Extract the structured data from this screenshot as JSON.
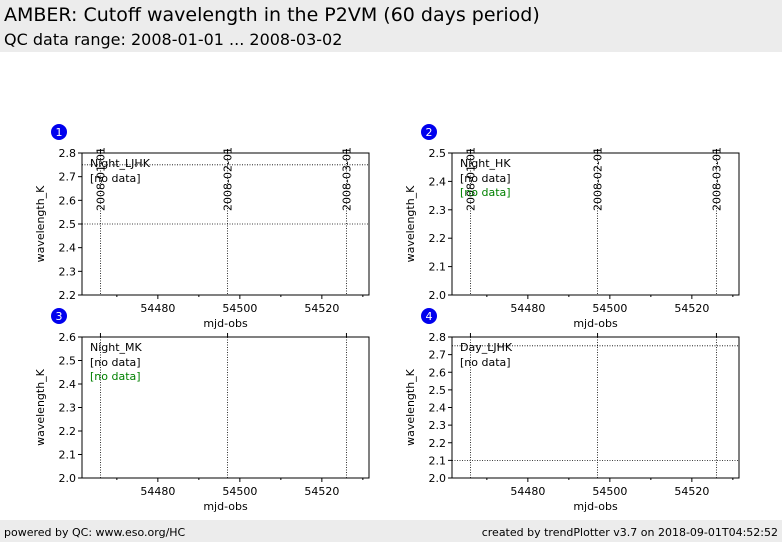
{
  "header": {
    "title": "AMBER: Cutoff wavelength in the P2VM (60 days period)",
    "subtitle": "QC data range: 2008-01-01 ... 2008-03-02"
  },
  "footer": {
    "left": "powered by QC: www.eso.org/HC",
    "right": "created by trendPlotter v3.7 on 2018-09-01T04:52:52"
  },
  "chart_data": [
    {
      "type": "scatter",
      "badge": "1",
      "legend": "Night_LJHK",
      "notes": [
        {
          "text": "[no data]",
          "color": "#000000"
        }
      ],
      "xlabel": "mjd-obs",
      "ylabel": "wavelength_K",
      "xlim": [
        54461.5,
        54531.5
      ],
      "ylim": [
        2.2,
        2.8
      ],
      "xticks": [
        54480,
        54500,
        54520
      ],
      "xminor": [
        54470,
        54490,
        54510,
        54530
      ],
      "yticks": [
        2.2,
        2.3,
        2.4,
        2.5,
        2.6,
        2.7,
        2.8
      ],
      "ref_lines_y": [
        2.75,
        2.5
      ],
      "date_marks": [
        {
          "x": 54466,
          "label": "2008-01-01"
        },
        {
          "x": 54497,
          "label": "2008-02-01"
        },
        {
          "x": 54526,
          "label": "2008-03-01"
        }
      ],
      "points": []
    },
    {
      "type": "scatter",
      "badge": "2",
      "legend": "Night_HK",
      "notes": [
        {
          "text": "[no data]",
          "color": "#000000"
        },
        {
          "text": "[no data]",
          "color": "#008000"
        }
      ],
      "xlabel": "mjd-obs",
      "ylabel": "wavelength_K",
      "xlim": [
        54461.5,
        54531.5
      ],
      "ylim": [
        2.0,
        2.5
      ],
      "xticks": [
        54480,
        54500,
        54520
      ],
      "xminor": [
        54470,
        54490,
        54510,
        54530
      ],
      "yticks": [
        2.0,
        2.1,
        2.2,
        2.3,
        2.4,
        2.5
      ],
      "ref_lines_y": [],
      "date_marks": [
        {
          "x": 54466,
          "label": "2008-01-01"
        },
        {
          "x": 54497,
          "label": "2008-02-01"
        },
        {
          "x": 54526,
          "label": "2008-03-01"
        }
      ],
      "points": []
    },
    {
      "type": "scatter",
      "badge": "3",
      "legend": "Night_MK",
      "notes": [
        {
          "text": "[no data]",
          "color": "#000000"
        },
        {
          "text": "[no data]",
          "color": "#008000"
        }
      ],
      "xlabel": "mjd-obs",
      "ylabel": "wavelength_K",
      "xlim": [
        54461.5,
        54531.5
      ],
      "ylim": [
        2.0,
        2.6
      ],
      "xticks": [
        54480,
        54500,
        54520
      ],
      "xminor": [
        54470,
        54490,
        54510,
        54530
      ],
      "yticks": [
        2.0,
        2.1,
        2.2,
        2.3,
        2.4,
        2.5,
        2.6
      ],
      "ref_lines_y": [],
      "date_marks": [
        {
          "x": 54466
        },
        {
          "x": 54497
        },
        {
          "x": 54526
        }
      ],
      "points": []
    },
    {
      "type": "scatter",
      "badge": "4",
      "legend": "Day_LJHK",
      "notes": [
        {
          "text": "[no data]",
          "color": "#000000"
        }
      ],
      "xlabel": "mjd-obs",
      "ylabel": "wavelength_K",
      "xlim": [
        54461.5,
        54531.5
      ],
      "ylim": [
        2.0,
        2.8
      ],
      "xticks": [
        54480,
        54500,
        54520
      ],
      "xminor": [
        54470,
        54490,
        54510,
        54530
      ],
      "yticks": [
        2.0,
        2.1,
        2.2,
        2.3,
        2.4,
        2.5,
        2.6,
        2.7,
        2.8
      ],
      "ref_lines_y": [
        2.75,
        2.1
      ],
      "date_marks": [
        {
          "x": 54466
        },
        {
          "x": 54497
        },
        {
          "x": 54526
        }
      ],
      "points": []
    }
  ]
}
